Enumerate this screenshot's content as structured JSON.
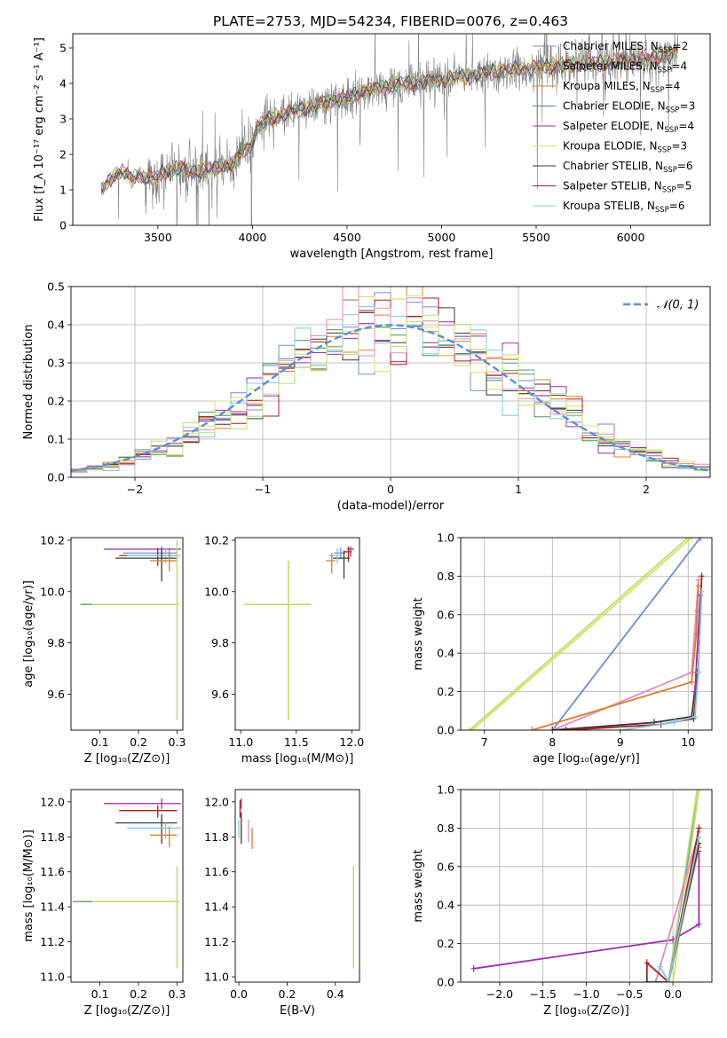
{
  "figure_title": "PLATE=2753, MJD=54234, FIBERID=0076, z=0.463",
  "colors": {
    "CM": "#6a8fdc",
    "SM": "#c8a000",
    "KM": "#e07b2a",
    "CE": "#4c9a4c",
    "SE": "#9b2fae",
    "KE": "#d8e060",
    "CS": "#3a3a3a",
    "SS": "#b01c1c",
    "KS": "#7ec8e3",
    "data": "#808080",
    "pink": "#e48ac0",
    "lime": "#b8e070",
    "normal": "#5b8fd6"
  },
  "chart_data": [
    {
      "id": "spectrum",
      "type": "line",
      "title": "",
      "xlabel": "wavelength [Angstrom, rest frame]",
      "ylabel": "Flux [f_λ 10⁻¹⁷ erg cm⁻² s⁻¹ A⁻¹]",
      "xlim": [
        3050,
        6420
      ],
      "ylim": [
        0,
        5.4
      ],
      "xticks": [
        3500,
        4000,
        4500,
        5000,
        5500,
        6000
      ],
      "yticks": [
        0,
        1,
        2,
        3,
        4,
        5
      ],
      "grid": false,
      "legend_position": "top-right",
      "legend": [
        {
          "label": "Chabrier MILES, N",
          "sub": "SSP",
          "tail": "=2",
          "color": "CM"
        },
        {
          "label": "Salpeter MILES, N",
          "sub": "SSP",
          "tail": "=4",
          "color": "SM"
        },
        {
          "label": "Kroupa MILES, N",
          "sub": "SSP",
          "tail": "=4",
          "color": "KM"
        },
        {
          "label": "Chabrier ELODIE, N",
          "sub": "SSP",
          "tail": "=3",
          "color": "CE"
        },
        {
          "label": "Salpeter ELODIE, N",
          "sub": "SSP",
          "tail": "=4",
          "color": "SE"
        },
        {
          "label": "Kroupa ELODIE, N",
          "sub": "SSP",
          "tail": "=3",
          "color": "KE"
        },
        {
          "label": "Chabrier STELIB, N",
          "sub": "SSP",
          "tail": "=6",
          "color": "CS"
        },
        {
          "label": "Salpeter STELIB, N",
          "sub": "SSP",
          "tail": "=5",
          "color": "SS"
        },
        {
          "label": "Kroupa STELIB, N",
          "sub": "SSP",
          "tail": "=6",
          "color": "KS"
        }
      ],
      "model_continuum": {
        "x": [
          3210,
          3240,
          3280,
          3320,
          3360,
          3400,
          3450,
          3500,
          3560,
          3620,
          3680,
          3740,
          3800,
          3850,
          3900,
          3950,
          3990,
          4030,
          4100,
          4200,
          4300,
          4400,
          4500,
          4600,
          4700,
          4800,
          4900,
          5000,
          5100,
          5200,
          5300,
          5400,
          5500,
          5600,
          5700,
          5800,
          5900,
          6000,
          6100,
          6200,
          6250
        ],
        "y": [
          1.0,
          1.25,
          1.45,
          1.5,
          1.3,
          1.4,
          1.35,
          1.35,
          1.55,
          1.6,
          1.5,
          1.55,
          1.6,
          1.7,
          1.75,
          2.1,
          2.25,
          2.8,
          3.0,
          3.2,
          3.3,
          3.5,
          3.6,
          3.8,
          3.9,
          4.0,
          4.05,
          4.1,
          4.2,
          4.25,
          4.35,
          4.4,
          4.45,
          4.5,
          4.55,
          4.55,
          4.6,
          4.65,
          4.7,
          4.8,
          4.85
        ]
      },
      "data_range": [
        3200,
        6250
      ]
    },
    {
      "id": "residuals",
      "type": "histogram",
      "title": "",
      "xlabel": "(data-model)/error",
      "ylabel": "Normed distribution",
      "xlim": [
        -2.5,
        2.5
      ],
      "ylim": [
        0,
        0.5
      ],
      "xticks": [
        -2,
        -1,
        0,
        1,
        2
      ],
      "yticks": [
        0,
        0.1,
        0.2,
        0.3,
        0.4,
        0.5
      ],
      "grid": true,
      "legend_position": "top-right",
      "normal_label": "𝒩(0, 1)",
      "bins": 40
    },
    {
      "id": "age-vs-Z",
      "type": "scatter",
      "xlabel": "Z [log₁₀(Z/Z⊙)]",
      "ylabel": "age  [log₁₀(age/yr)]",
      "xlim": [
        0.025,
        0.315
      ],
      "ylim": [
        9.46,
        10.21
      ],
      "xticks": [
        0.1,
        0.2,
        0.3
      ],
      "yticks": [
        9.6,
        9.8,
        10.0,
        10.2
      ],
      "grid": false,
      "points": [
        {
          "c": "SE",
          "x": 0.26,
          "xerr": [
            0.15,
            0.05
          ],
          "y": 10.165,
          "yerr": [
            0.03,
            0.01
          ]
        },
        {
          "c": "CM",
          "x": 0.28,
          "xerr": [
            0.12,
            0.02
          ],
          "y": 10.15,
          "yerr": [
            0.02,
            0.02
          ]
        },
        {
          "c": "SS",
          "x": 0.25,
          "xerr": [
            0.1,
            0.05
          ],
          "y": 10.14,
          "yerr": [
            0.04,
            0.03
          ]
        },
        {
          "c": "KS",
          "x": 0.27,
          "xerr": [
            0.1,
            0.04
          ],
          "y": 10.14,
          "yerr": [
            0.03,
            0.03
          ]
        },
        {
          "c": "CS",
          "x": 0.26,
          "xerr": [
            0.12,
            0.04
          ],
          "y": 10.13,
          "yerr": [
            0.09,
            0.03
          ]
        },
        {
          "c": "KM",
          "x": 0.28,
          "xerr": [
            0.05,
            0.02
          ],
          "y": 10.12,
          "yerr": [
            0.04,
            0.03
          ]
        },
        {
          "c": "CE",
          "x": 0.3,
          "xerr": [
            0.25,
            0.005
          ],
          "y": 9.95,
          "yerr": [
            0.45,
            0.25
          ]
        },
        {
          "c": "KE",
          "x": 0.3,
          "xerr": [
            0.22,
            0.005
          ],
          "y": 9.95,
          "yerr": [
            0.45,
            0.25
          ]
        }
      ]
    },
    {
      "id": "age-vs-mass",
      "type": "scatter",
      "xlabel": "mass [log₁₀(M/M⊙)]",
      "ylabel": "",
      "xlim": [
        10.95,
        12.07
      ],
      "ylim": [
        9.46,
        10.21
      ],
      "xticks": [
        11.0,
        11.5,
        12.0
      ],
      "yticks": [
        9.6,
        9.8,
        10.0,
        10.2
      ],
      "grid": false,
      "points": [
        {
          "c": "SE",
          "x": 11.99,
          "xerr": [
            0.03,
            0.03
          ],
          "y": 10.165,
          "yerr": [
            0.03,
            0.01
          ]
        },
        {
          "c": "SS",
          "x": 11.97,
          "xerr": [
            0.04,
            0.03
          ],
          "y": 10.155,
          "yerr": [
            0.04,
            0.02
          ]
        },
        {
          "c": "CM",
          "x": 11.9,
          "xerr": [
            0.06,
            0.04
          ],
          "y": 10.15,
          "yerr": [
            0.02,
            0.02
          ]
        },
        {
          "c": "CS",
          "x": 11.93,
          "xerr": [
            0.1,
            0.05
          ],
          "y": 10.13,
          "yerr": [
            0.08,
            0.03
          ]
        },
        {
          "c": "KS",
          "x": 11.87,
          "xerr": [
            0.08,
            0.03
          ],
          "y": 10.14,
          "yerr": [
            0.03,
            0.03
          ]
        },
        {
          "c": "KM",
          "x": 11.82,
          "xerr": [
            0.05,
            0.03
          ],
          "y": 10.12,
          "yerr": [
            0.05,
            0.03
          ]
        },
        {
          "c": "CE",
          "x": 11.43,
          "xerr": [
            0.4,
            0.2
          ],
          "y": 9.95,
          "yerr": [
            0.45,
            0.17
          ]
        },
        {
          "c": "KE",
          "x": 11.43,
          "xerr": [
            0.4,
            0.2
          ],
          "y": 9.95,
          "yerr": [
            0.45,
            0.17
          ]
        }
      ]
    },
    {
      "id": "massweight-vs-age",
      "type": "line",
      "xlabel": "age  [log₁₀(age/yr)]",
      "ylabel": "mass weight",
      "xlim": [
        6.65,
        10.35
      ],
      "ylim": [
        0,
        1.0
      ],
      "xticks": [
        7,
        8,
        9,
        10
      ],
      "yticks": [
        0.0,
        0.2,
        0.4,
        0.6,
        0.8,
        1.0
      ],
      "grid": true,
      "series": [
        {
          "c": "KE",
          "x": [
            6.82,
            10.05
          ],
          "y": [
            0.0,
            1.0
          ]
        },
        {
          "c": "lime",
          "x": [
            6.78,
            10.0
          ],
          "y": [
            0.0,
            1.0
          ]
        },
        {
          "c": "CM",
          "x": [
            8.0,
            10.18
          ],
          "y": [
            0.0,
            1.0
          ]
        },
        {
          "c": "pink",
          "x": [
            8.0,
            10.05,
            10.12,
            10.15
          ],
          "y": [
            0.0,
            0.3,
            0.62,
            0.78
          ]
        },
        {
          "c": "KM",
          "x": [
            7.7,
            10.05,
            10.12,
            10.15
          ],
          "y": [
            0.0,
            0.25,
            0.5,
            0.75
          ]
        },
        {
          "c": "CS",
          "x": [
            8.0,
            9.5,
            10.05,
            10.13
          ],
          "y": [
            0.0,
            0.04,
            0.07,
            0.3
          ]
        },
        {
          "c": "SS",
          "x": [
            8.2,
            9.6,
            10.08,
            10.15,
            10.2
          ],
          "y": [
            0.0,
            0.03,
            0.06,
            0.3,
            0.8
          ]
        },
        {
          "c": "SE",
          "x": [
            10.1,
            10.18
          ],
          "y": [
            0.2,
            0.7
          ]
        },
        {
          "c": "KS",
          "x": [
            9.0,
            9.8,
            10.1,
            10.15,
            10.2
          ],
          "y": [
            0.0,
            0.04,
            0.07,
            0.3,
            0.72
          ]
        }
      ]
    },
    {
      "id": "mass-vs-Z",
      "type": "scatter",
      "xlabel": "Z [log₁₀(Z/Z⊙)]",
      "ylabel": "mass [log₁₀(M/M⊙)]",
      "xlim": [
        0.025,
        0.315
      ],
      "ylim": [
        10.97,
        12.07
      ],
      "xticks": [
        0.1,
        0.2,
        0.3
      ],
      "yticks": [
        11.0,
        11.2,
        11.4,
        11.6,
        11.8,
        12.0
      ],
      "grid": false,
      "points": [
        {
          "c": "SE",
          "x": 0.26,
          "xerr": [
            0.15,
            0.05
          ],
          "y": 11.99,
          "yerr": [
            0.03,
            0.03
          ]
        },
        {
          "c": "SS",
          "x": 0.25,
          "xerr": [
            0.1,
            0.05
          ],
          "y": 11.95,
          "yerr": [
            0.04,
            0.03
          ]
        },
        {
          "c": "CS",
          "x": 0.26,
          "xerr": [
            0.12,
            0.04
          ],
          "y": 11.88,
          "yerr": [
            0.12,
            0.05
          ]
        },
        {
          "c": "KS",
          "x": 0.27,
          "xerr": [
            0.1,
            0.04
          ],
          "y": 11.85,
          "yerr": [
            0.06,
            0.03
          ]
        },
        {
          "c": "KM",
          "x": 0.28,
          "xerr": [
            0.05,
            0.02
          ],
          "y": 11.81,
          "yerr": [
            0.07,
            0.05
          ]
        },
        {
          "c": "CE",
          "x": 0.3,
          "xerr": [
            0.27,
            0.005
          ],
          "y": 11.43,
          "yerr": [
            0.38,
            0.2
          ]
        },
        {
          "c": "KE",
          "x": 0.3,
          "xerr": [
            0.22,
            0.005
          ],
          "y": 11.43,
          "yerr": [
            0.38,
            0.2
          ]
        }
      ]
    },
    {
      "id": "mass-vs-EBV",
      "type": "scatter",
      "xlabel": "E(B-V)",
      "ylabel": "",
      "xlim": [
        -0.015,
        0.5
      ],
      "ylim": [
        10.97,
        12.07
      ],
      "xticks": [
        0.0,
        0.2,
        0.4
      ],
      "yticks": [
        11.0,
        11.2,
        11.4,
        11.6,
        11.8,
        12.0
      ],
      "grid": false,
      "points": [
        {
          "c": "SE",
          "x": 0.01,
          "xerr": [
            0,
            0
          ],
          "y": 11.99,
          "yerr": [
            0.03,
            0.03
          ]
        },
        {
          "c": "SS",
          "x": 0.005,
          "xerr": [
            0,
            0
          ],
          "y": 11.96,
          "yerr": [
            0.05,
            0.05
          ]
        },
        {
          "c": "CS",
          "x": 0.01,
          "xerr": [
            0,
            0
          ],
          "y": 11.88,
          "yerr": [
            0.12,
            0.06
          ]
        },
        {
          "c": "KS",
          "x": 0.0,
          "xerr": [
            0,
            0
          ],
          "y": 11.85,
          "yerr": [
            0.06,
            0.05
          ]
        },
        {
          "c": "pink",
          "x": 0.04,
          "xerr": [
            0,
            0
          ],
          "y": 11.85,
          "yerr": [
            0.08,
            0.05
          ]
        },
        {
          "c": "KM",
          "x": 0.055,
          "xerr": [
            0,
            0
          ],
          "y": 11.8,
          "yerr": [
            0.07,
            0.05
          ]
        },
        {
          "c": "CE",
          "x": 0.475,
          "xerr": [
            0,
            0
          ],
          "y": 11.43,
          "yerr": [
            0.38,
            0.2
          ]
        },
        {
          "c": "KE",
          "x": 0.475,
          "xerr": [
            0,
            0
          ],
          "y": 11.43,
          "yerr": [
            0.38,
            0.2
          ]
        }
      ]
    },
    {
      "id": "massweight-vs-Z",
      "type": "line",
      "xlabel": "Z [log₁₀(Z/Z⊙)]",
      "ylabel": "mass weight",
      "xlim": [
        -2.45,
        0.45
      ],
      "ylim": [
        0,
        1.0
      ],
      "xticks": [
        -2.0,
        -1.5,
        -1.0,
        -0.5,
        0.0
      ],
      "yticks": [
        0.0,
        0.2,
        0.4,
        0.6,
        0.8,
        1.0
      ],
      "grid": true,
      "series": [
        {
          "c": "SE",
          "x": [
            -2.3,
            0.0,
            0.3,
            0.3
          ],
          "y": [
            0.07,
            0.22,
            0.3,
            0.68
          ]
        },
        {
          "c": "CM",
          "x": [
            -0.05,
            0.3
          ],
          "y": [
            0.0,
            1.0
          ]
        },
        {
          "c": "KE",
          "x": [
            0.0,
            0.3
          ],
          "y": [
            0.0,
            1.0
          ]
        },
        {
          "c": "lime",
          "x": [
            -0.05,
            0.28
          ],
          "y": [
            0.0,
            1.0
          ]
        },
        {
          "c": "pink",
          "x": [
            -0.2,
            0.3
          ],
          "y": [
            0.0,
            0.78
          ]
        },
        {
          "c": "KM",
          "x": [
            -0.05,
            0.3
          ],
          "y": [
            0.0,
            0.7
          ]
        },
        {
          "c": "SS",
          "x": [
            -0.3,
            -0.3,
            -0.05,
            0.3
          ],
          "y": [
            0.0,
            0.1,
            0.0,
            0.8
          ]
        },
        {
          "c": "CS",
          "x": [
            -0.3,
            -0.05,
            0.3
          ],
          "y": [
            0.0,
            0.0,
            0.72
          ]
        },
        {
          "c": "KS",
          "x": [
            -0.15,
            -0.05,
            0.3
          ],
          "y": [
            0.08,
            0.0,
            0.75
          ]
        }
      ]
    }
  ]
}
